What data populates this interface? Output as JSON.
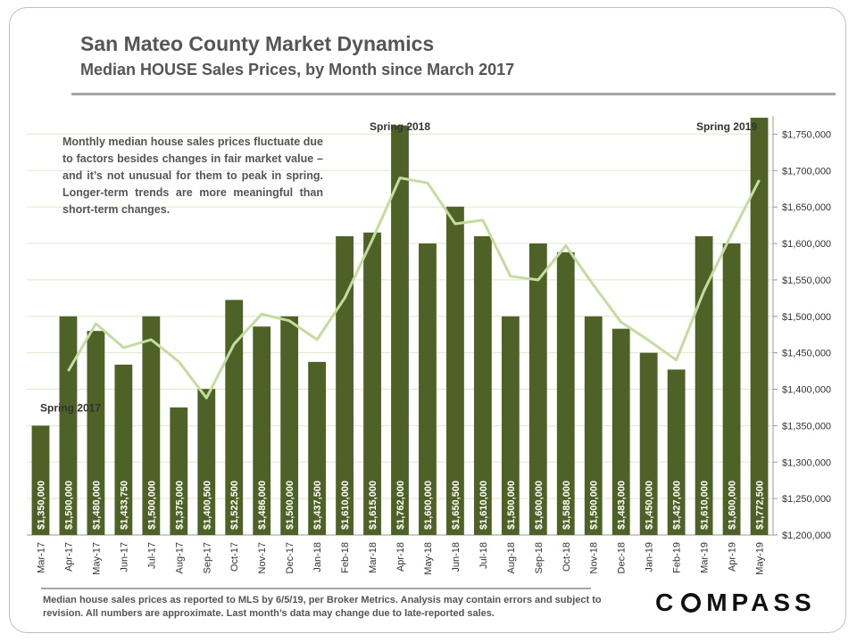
{
  "header": {
    "title": "San Mateo County Market Dynamics",
    "subtitle": "Median HOUSE Sales Prices, by Month since March 2017"
  },
  "note": "Monthly median house sales prices fluctuate due to factors besides changes in fair market value – and it’s not unusual for them to peak in spring. Longer-term trends are more meaningful than short-term changes.",
  "footnote": "Median house sales prices as reported to MLS by 6/5/19, per Broker Metrics. Analysis may contain errors and subject to revision. All numbers are approximate. Last month’s data may change due to late-reported sales.",
  "logo": {
    "text_left": "C",
    "text_right": "MPASS"
  },
  "colors": {
    "bar": "#4e6227",
    "trend": "#c5dca0",
    "grid": "#e0e8cc"
  },
  "chart_data": {
    "type": "bar",
    "categories": [
      "Mar-17",
      "Apr-17",
      "May-17",
      "Jun-17",
      "Jul-17",
      "Aug-17",
      "Sep-17",
      "Oct-17",
      "Nov-17",
      "Dec-17",
      "Jan-18",
      "Feb-18",
      "Mar-18",
      "Apr-18",
      "May-18",
      "Jun-18",
      "Jul-18",
      "Aug-18",
      "Sep-18",
      "Oct-18",
      "Nov-18",
      "Dec-18",
      "Jan-19",
      "Feb-19",
      "Mar-19",
      "Apr-19",
      "May-19"
    ],
    "series": [
      {
        "type": "bar",
        "values": [
          1350000,
          1500000,
          1480000,
          1433750,
          1500000,
          1375000,
          1400500,
          1522500,
          1486000,
          1500000,
          1437500,
          1610000,
          1615000,
          1762000,
          1600000,
          1650500,
          1610000,
          1500000,
          1600000,
          1588000,
          1500000,
          1483000,
          1450000,
          1427000,
          1610000,
          1600000,
          1772500
        ]
      },
      {
        "type": "line",
        "values": [
          null,
          1425000,
          1490000,
          1457000,
          1468000,
          1438000,
          1388000,
          1462000,
          1503000,
          1494000,
          1468000,
          1525000,
          1605000,
          1690000,
          1683000,
          1627000,
          1632000,
          1555000,
          1550000,
          1597000,
          1543000,
          1492000,
          1467000,
          1440000,
          1535000,
          1613000,
          1687000
        ]
      }
    ],
    "data_labels": [
      "$1,350,000",
      "$1,500,000",
      "$1,480,000",
      "$1,433,750",
      "$1,500,000",
      "$1,375,000",
      "$1,400,500",
      "$1,522,500",
      "$1,486,000",
      "$1,500,000",
      "$1,437,500",
      "$1,610,000",
      "$1,615,000",
      "$1,762,000",
      "$1,600,000",
      "$1,650,500",
      "$1,610,000",
      "$1,500,000",
      "$1,600,000",
      "$1,588,000",
      "$1,500,000",
      "$1,483,000",
      "$1,450,000",
      "$1,427,000",
      "$1,610,000",
      "$1,600,000",
      "$1,772,500"
    ],
    "ylim": [
      1200000,
      1775000
    ],
    "yticks": [
      1200000,
      1250000,
      1300000,
      1350000,
      1400000,
      1450000,
      1500000,
      1550000,
      1600000,
      1650000,
      1700000,
      1750000
    ],
    "ytick_labels": [
      "$1,200,000",
      "$1,250,000",
      "$1,300,000",
      "$1,350,000",
      "$1,400,000",
      "$1,450,000",
      "$1,500,000",
      "$1,550,000",
      "$1,600,000",
      "$1,650,000",
      "$1,700,000",
      "$1,750,000"
    ],
    "y_axis_side": "right",
    "grid": true,
    "annotations": [
      {
        "text": "Spring 2017",
        "category": "Mar-17"
      },
      {
        "text": "Spring 2018",
        "category": "Apr-18"
      },
      {
        "text": "Spring 2019",
        "category": "May-19"
      }
    ]
  }
}
